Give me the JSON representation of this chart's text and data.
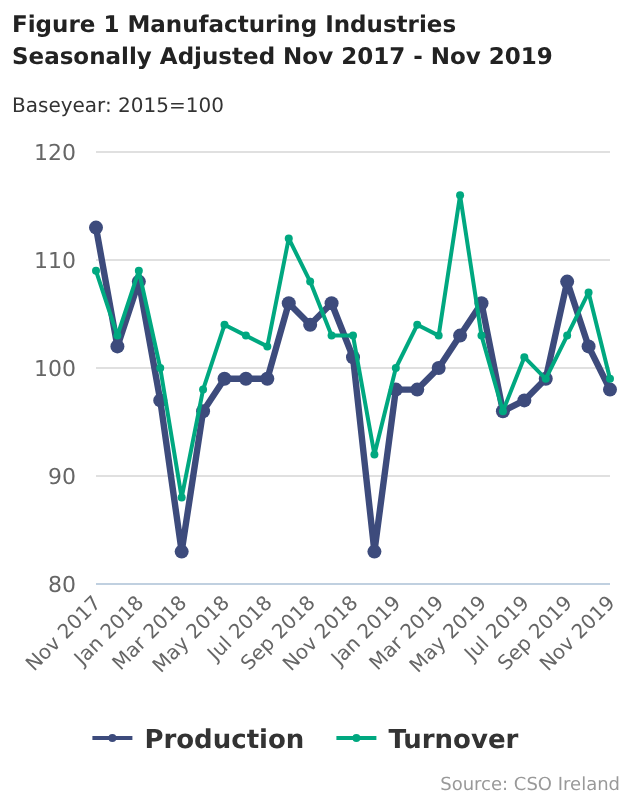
{
  "chart_data": {
    "type": "line",
    "title": "Figure 1 Manufacturing Industries Seasonally Adjusted Nov 2017 - Nov 2019",
    "subtitle": "Baseyear: 2015=100",
    "categories": [
      "Nov 2017",
      null,
      "Jan 2018",
      null,
      "Mar 2018",
      null,
      "May 2018",
      null,
      "Jul 2018",
      null,
      "Sep 2018",
      null,
      "Nov 2018",
      null,
      "Jan 2019",
      null,
      "Mar 2019",
      null,
      "May 2019",
      null,
      "Jul 2019",
      null,
      "Sep 2019",
      null,
      "Nov 2019"
    ],
    "series": [
      {
        "name": "Production",
        "color": "#3d4b7c",
        "values": [
          113,
          102,
          108,
          97,
          83,
          96,
          99,
          99,
          99,
          106,
          104,
          106,
          101,
          83,
          98,
          98,
          100,
          103,
          106,
          96,
          97,
          99,
          108,
          102,
          98
        ]
      },
      {
        "name": "Turnover",
        "color": "#00a880",
        "values": [
          109,
          103,
          109,
          100,
          88,
          98,
          104,
          103,
          102,
          112,
          108,
          103,
          103,
          92,
          100,
          104,
          103,
          116,
          103,
          96,
          101,
          99,
          103,
          107,
          99
        ]
      }
    ],
    "ylim": [
      80,
      120
    ],
    "yticks": [
      80,
      90,
      100,
      110,
      120
    ],
    "grid": "y",
    "legend": "bottom",
    "marker": "circle",
    "line_style": "solid",
    "annotations": [
      "Source: CSO Ireland"
    ]
  }
}
